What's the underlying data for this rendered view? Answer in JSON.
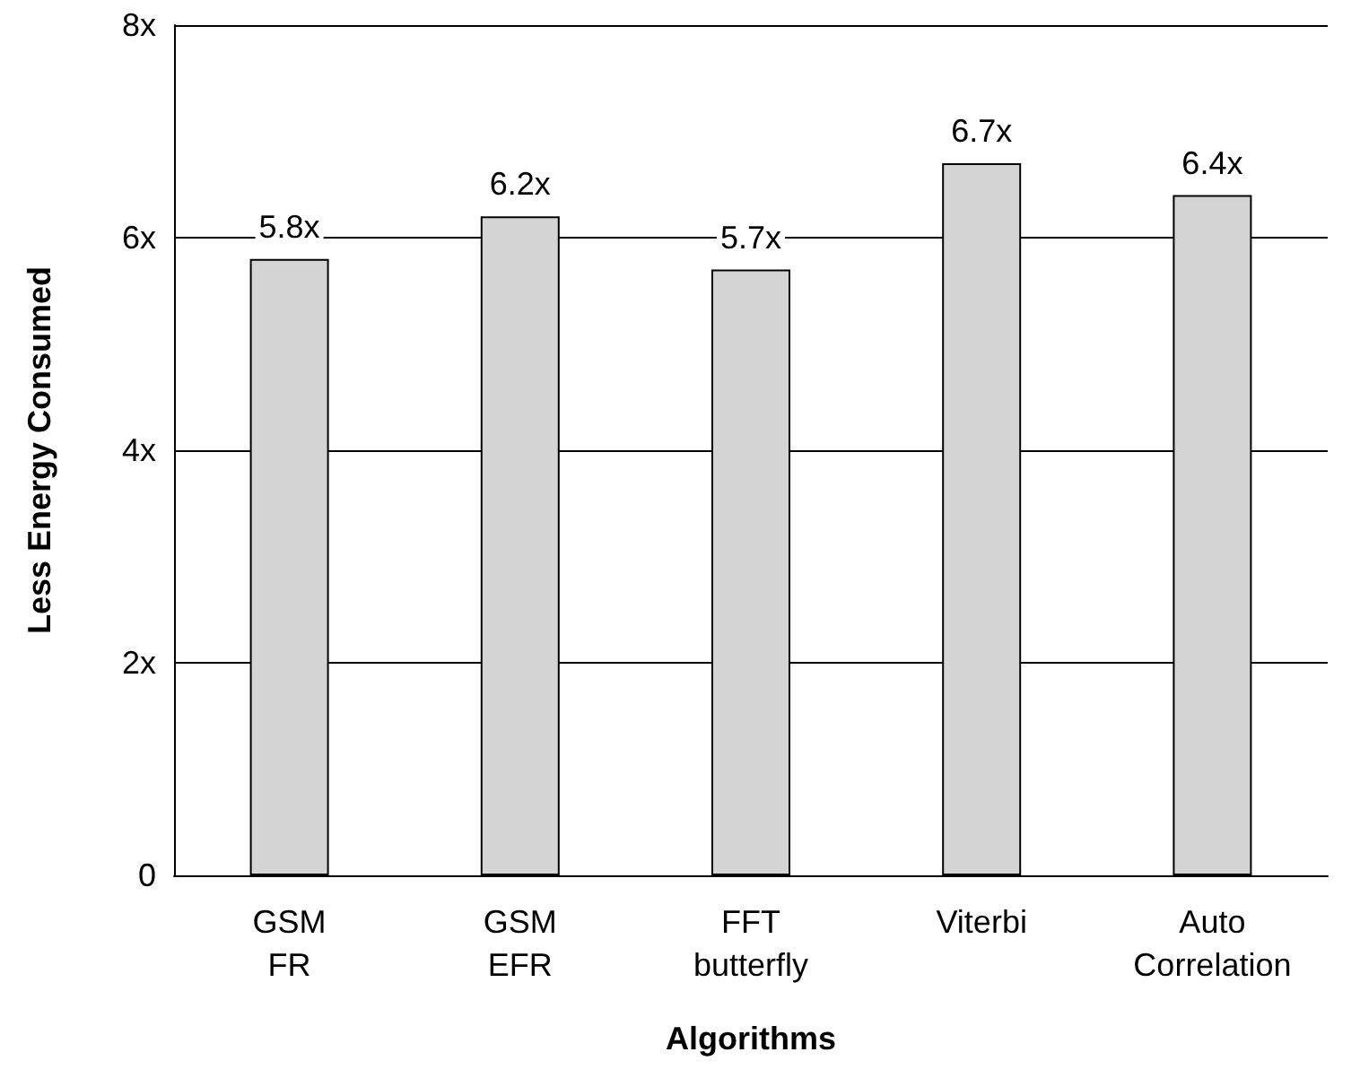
{
  "chart_data": {
    "type": "bar",
    "xlabel": "Algorithms",
    "ylabel": "Less Energy Consumed",
    "categories": [
      "GSM\nFR",
      "GSM\nEFR",
      "FFT\nbutterfly",
      "Viterbi",
      "Auto\nCorrelation"
    ],
    "values": [
      5.8,
      6.2,
      5.7,
      6.7,
      6.4
    ],
    "value_labels": [
      "5.8x",
      "6.2x",
      "5.7x",
      "6.7x",
      "6.4x"
    ],
    "color": "#d4d4d4",
    "ylim": [
      0,
      8
    ],
    "yticks": [
      {
        "value": 0,
        "label": "0"
      },
      {
        "value": 2,
        "label": "2x"
      },
      {
        "value": 4,
        "label": "4x"
      },
      {
        "value": 6,
        "label": "6x"
      },
      {
        "value": 8,
        "label": "8x"
      }
    ],
    "grid": "y"
  }
}
